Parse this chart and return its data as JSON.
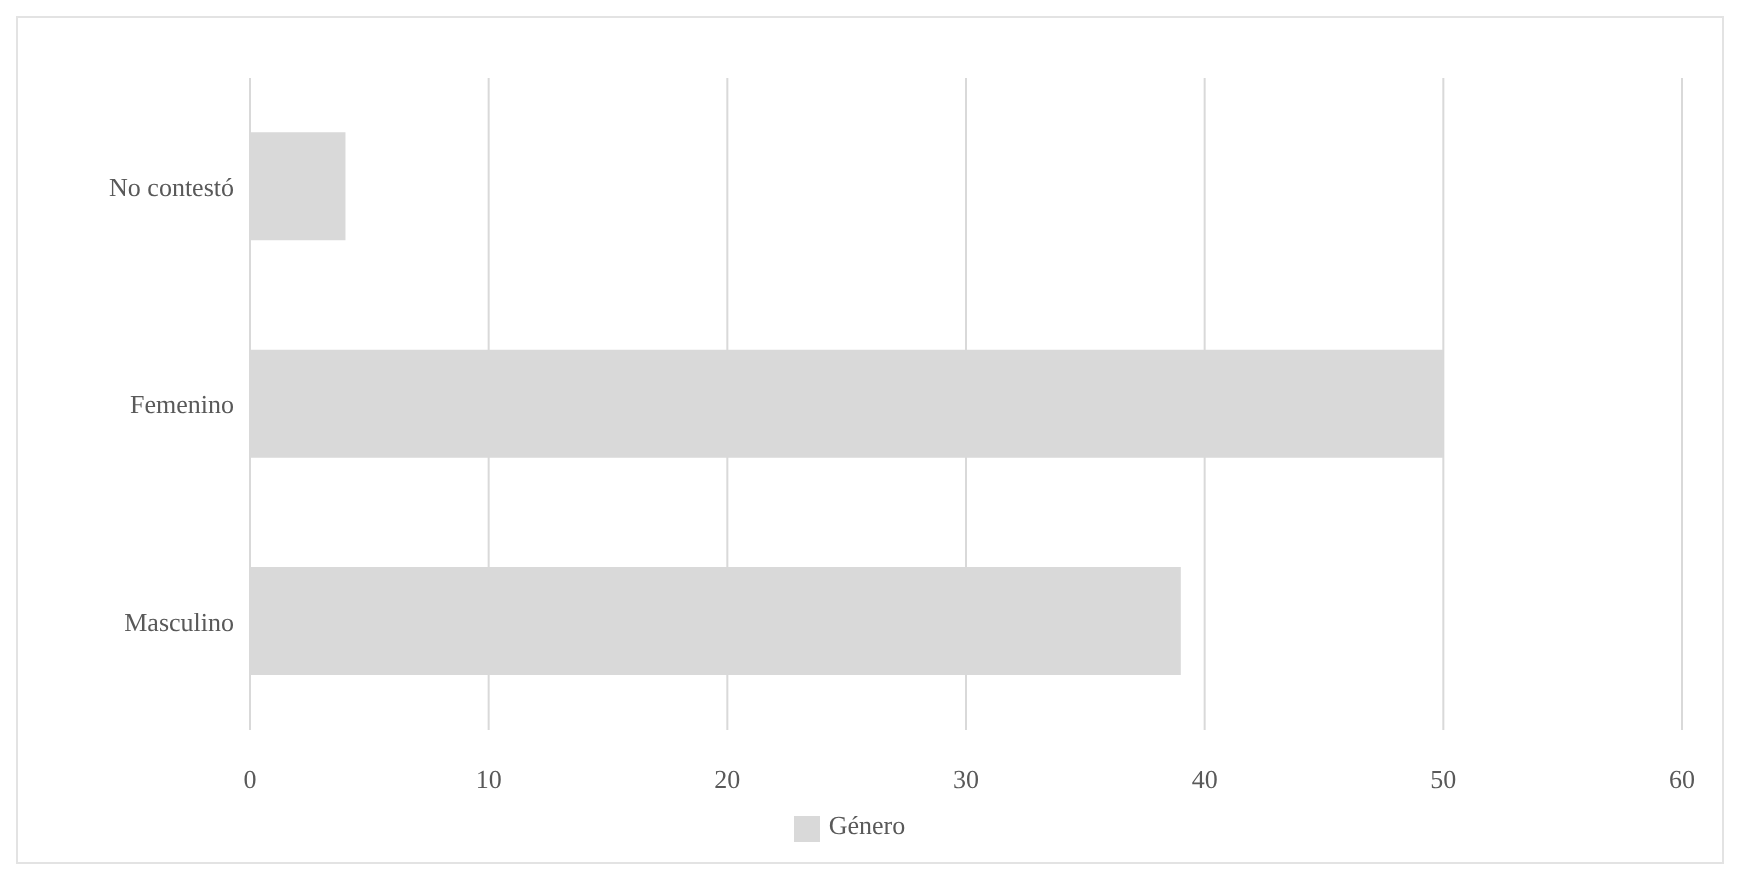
{
  "chart_data": {
    "type": "bar",
    "orientation": "horizontal",
    "categories": [
      "No contestó",
      "Femenino",
      "Masculino"
    ],
    "series": [
      {
        "name": "Género",
        "color": "#d9d9d9",
        "values": [
          4,
          50,
          39
        ]
      }
    ],
    "xlim": [
      0,
      60
    ],
    "xticks": [
      0,
      10,
      20,
      30,
      40,
      50,
      60
    ],
    "grid": "x",
    "legend": "bottom"
  }
}
